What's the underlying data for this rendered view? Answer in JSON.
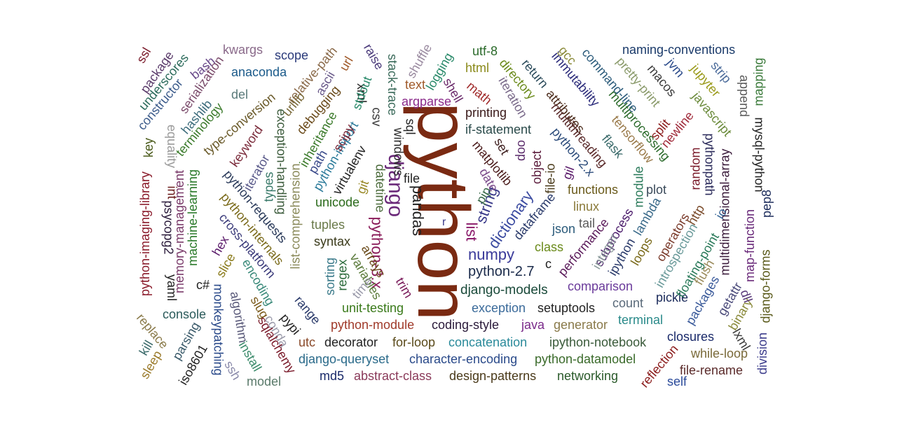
{
  "title": "Python tag word cloud",
  "words": [
    {
      "text": "python",
      "color": "#7a2a12"
    },
    {
      "text": "django",
      "color": "#6b2a7a"
    },
    {
      "text": "python-3.x",
      "color": "#8a1c5a"
    },
    {
      "text": "pandas",
      "color": "#222222"
    },
    {
      "text": "list",
      "color": "#8a1a6a"
    },
    {
      "text": "string",
      "color": "#3a3a8a"
    },
    {
      "text": "dictionary",
      "color": "#3a4aa0"
    },
    {
      "text": "numpy",
      "color": "#3a3a9a"
    },
    {
      "text": "python-2.7",
      "color": "#1a2a4a"
    },
    {
      "text": "django-models",
      "color": "#1a4a3a"
    },
    {
      "text": "exception",
      "color": "#3a6a9a"
    },
    {
      "text": "setuptools",
      "color": "#222222"
    },
    {
      "text": "unit-testing",
      "color": "#3a7a1a"
    },
    {
      "text": "python-module",
      "color": "#a03a2a"
    },
    {
      "text": "coding-style",
      "color": "#2a1a3a"
    },
    {
      "text": "java",
      "color": "#7a2a8a"
    },
    {
      "text": "generator",
      "color": "#8a7a4a"
    },
    {
      "text": "utc",
      "color": "#8a4a2a"
    },
    {
      "text": "decorator",
      "color": "#222222"
    },
    {
      "text": "for-loop",
      "color": "#5a4a1a"
    },
    {
      "text": "concatenation",
      "color": "#2a8a9a"
    },
    {
      "text": "ipython-notebook",
      "color": "#3a5a3a"
    },
    {
      "text": "django-queryset",
      "color": "#2a6a8a"
    },
    {
      "text": "character-encoding",
      "color": "#2a4a8a"
    },
    {
      "text": "python-datamodel",
      "color": "#3a6a2a"
    },
    {
      "text": "md5",
      "color": "#1a2a6a"
    },
    {
      "text": "abstract-class",
      "color": "#8a3a5a"
    },
    {
      "text": "design-patterns",
      "color": "#4a3a1a"
    },
    {
      "text": "networking",
      "color": "#2a5a2a"
    },
    {
      "text": "comparison",
      "color": "#6a3a9a"
    },
    {
      "text": "count",
      "color": "#5a6a7a"
    },
    {
      "text": "terminal",
      "color": "#2a8a8a"
    },
    {
      "text": "pickle",
      "color": "#1a2a5a"
    },
    {
      "text": "closures",
      "color": "#1a2a6a"
    },
    {
      "text": "while-loop",
      "color": "#7a6a3a"
    },
    {
      "text": "file-rename",
      "color": "#5a2a2a"
    },
    {
      "text": "self",
      "color": "#2a4a9a"
    },
    {
      "text": "argparse",
      "color": "#8a2a8a"
    },
    {
      "text": "printing",
      "color": "#3a1a1a"
    },
    {
      "text": "if-statement",
      "color": "#2a4a4a"
    },
    {
      "text": "text",
      "color": "#a05a2a"
    },
    {
      "text": "html",
      "color": "#8a8a1a"
    },
    {
      "text": "utf-8",
      "color": "#2a6a2a"
    },
    {
      "text": "logging",
      "color": "#2a8a6a"
    },
    {
      "text": "file",
      "color": "#222222"
    },
    {
      "text": "unicode",
      "color": "#2a6a1a"
    },
    {
      "text": "tuples",
      "color": "#6a7a4a"
    },
    {
      "text": "syntax",
      "color": "#3a3a1a"
    },
    {
      "text": "json",
      "color": "#2a5a7a"
    },
    {
      "text": "class",
      "color": "#6a8a1a"
    },
    {
      "text": "c",
      "color": "#222222"
    },
    {
      "text": "functions",
      "color": "#6a5a1a"
    },
    {
      "text": "linux",
      "color": "#8a7a3a"
    },
    {
      "text": "tail",
      "color": "#5a5a5a"
    },
    {
      "text": "plot",
      "color": "#3a4a5a"
    },
    {
      "text": "naming-conventions",
      "color": "#1a3a6a"
    },
    {
      "text": "anaconda",
      "color": "#1a5a8a"
    },
    {
      "text": "scope",
      "color": "#2a3a7a"
    },
    {
      "text": "kwargs",
      "color": "#8a6a8a"
    },
    {
      "text": "del",
      "color": "#5a7a7a"
    },
    {
      "text": "r",
      "color": "#3a3a8a"
    },
    {
      "text": "key",
      "color": "#4a5a1a"
    },
    {
      "text": "c#",
      "color": "#222222"
    },
    {
      "text": "ssl",
      "color": "#7a1a2a"
    },
    {
      "text": "package",
      "color": "#5a3a6a"
    },
    {
      "text": "underscores",
      "color": "#2a6a5a"
    },
    {
      "text": "constructor",
      "color": "#3a5a8a"
    },
    {
      "text": "bash",
      "color": "#6a4a8a"
    },
    {
      "text": "serialization",
      "color": "#7a4a6a"
    },
    {
      "text": "hashlib",
      "color": "#3a6a7a"
    },
    {
      "text": "terminology",
      "color": "#3a7a2a"
    },
    {
      "text": "equality",
      "color": "#9a9a9a"
    },
    {
      "text": "type-conversion",
      "color": "#6a5a2a"
    },
    {
      "text": "keyword",
      "color": "#7a2a3a"
    },
    {
      "text": "relative-path",
      "color": "#8a6a4a"
    },
    {
      "text": "urllib",
      "color": "#7a6a3a"
    },
    {
      "text": "ascii",
      "color": "#6a5a8a"
    },
    {
      "text": "url",
      "color": "#a05a2a"
    },
    {
      "text": "debugging",
      "color": "#6a4a1a"
    },
    {
      "text": "raise",
      "color": "#4a3a7a"
    },
    {
      "text": "xml",
      "color": "#222222"
    },
    {
      "text": "stdout",
      "color": "#2a8a6a"
    },
    {
      "text": "csv",
      "color": "#3a3a3a"
    },
    {
      "text": "stack-trace",
      "color": "#3a6a5a"
    },
    {
      "text": "shuffle",
      "color": "#9a8aa0"
    },
    {
      "text": "shell",
      "color": "#6a2a6a"
    },
    {
      "text": "math",
      "color": "#a02a2a"
    },
    {
      "text": "directory",
      "color": "#6a8a1a"
    },
    {
      "text": "iteration",
      "color": "#7a6a8a"
    },
    {
      "text": "return",
      "color": "#2a4a5a"
    },
    {
      "text": "attributes",
      "color": "#4a2a1a"
    },
    {
      "text": "multithreading",
      "color": "#5a2a2a"
    },
    {
      "text": "gcc",
      "color": "#8a8a3a"
    },
    {
      "text": "immutability",
      "color": "#2a2a7a"
    },
    {
      "text": "command-line",
      "color": "#2a5a7a"
    },
    {
      "text": "multiprocessing",
      "color": "#2a6a2a"
    },
    {
      "text": "pretty-print",
      "color": "#8a9a6a"
    },
    {
      "text": "macos",
      "color": "#3a3a3a"
    },
    {
      "text": "jvm",
      "color": "#2a4a8a"
    },
    {
      "text": "strip",
      "color": "#4a6a9a"
    },
    {
      "text": "jupyter",
      "color": "#9a9a1a"
    },
    {
      "text": "append",
      "color": "#5a5a5a"
    },
    {
      "text": "mapping",
      "color": "#3a7a3a"
    },
    {
      "text": "javascript",
      "color": "#6a8a3a"
    },
    {
      "text": "split",
      "color": "#8a1a1a"
    },
    {
      "text": "newline",
      "color": "#a02a3a"
    },
    {
      "text": "pythonpath",
      "color": "#2a2a5a"
    },
    {
      "text": "multidimensional-array",
      "color": "#3a1a3a"
    },
    {
      "text": "mysql-python",
      "color": "#222222"
    },
    {
      "text": "pep8",
      "color": "#1a2a5a"
    },
    {
      "text": "random",
      "color": "#7a1a2a"
    },
    {
      "text": "http",
      "color": "#7a4a2a"
    },
    {
      "text": "io",
      "color": "#3a6a9a"
    },
    {
      "text": "map-function",
      "color": "#6a2a7a"
    },
    {
      "text": "flask",
      "color": "#3a6a6a"
    },
    {
      "text": "tensorflow",
      "color": "#9a7a4a"
    },
    {
      "text": "python-2.x",
      "color": "#2a4a7a"
    },
    {
      "text": "file-io",
      "color": "#4a3a1a"
    },
    {
      "text": "gil",
      "color": "#5a1a6a"
    },
    {
      "text": "module",
      "color": "#2a7a5a"
    },
    {
      "text": "lambda",
      "color": "#3a6a8a"
    },
    {
      "text": "operators",
      "color": "#7a3a2a"
    },
    {
      "text": "introspection",
      "color": "#6a9a9a"
    },
    {
      "text": "floating-point",
      "color": "#2a7a5a"
    },
    {
      "text": "flush",
      "color": "#9a8a5a"
    },
    {
      "text": "packages",
      "color": "#3a5a9a"
    },
    {
      "text": "getattr",
      "color": "#4a4a7a"
    },
    {
      "text": "binary",
      "color": "#8a8a3a"
    },
    {
      "text": "lxml",
      "color": "#3a3a3a"
    },
    {
      "text": "dll",
      "color": "#5a3a7a"
    },
    {
      "text": "django-forms",
      "color": "#5a5a1a"
    },
    {
      "text": "division",
      "color": "#3a3a8a"
    },
    {
      "text": "reflection",
      "color": "#8a1a1a"
    },
    {
      "text": "subprocess",
      "color": "#4a1a6a"
    },
    {
      "text": "integer",
      "color": "#8a9a9a"
    },
    {
      "text": "ipython",
      "color": "#2a3a6a"
    },
    {
      "text": "performance",
      "color": "#5a1a5a"
    },
    {
      "text": "loops",
      "color": "#7a6a1a"
    },
    {
      "text": "dataframe",
      "color": "#2a3a6a"
    },
    {
      "text": "object",
      "color": "#5a1a3a"
    },
    {
      "text": "oop",
      "color": "#5a2a6a"
    },
    {
      "text": "set",
      "color": "#3a1a1a"
    },
    {
      "text": "matplotlib",
      "color": "#4a1a1a"
    },
    {
      "text": "date",
      "color": "#7a4a8a"
    },
    {
      "text": "pip",
      "color": "#3a6a4a"
    },
    {
      "text": "sql",
      "color": "#222222"
    },
    {
      "text": "windows",
      "color": "#2a2a2a"
    },
    {
      "text": "datetime",
      "color": "#4a6a3a"
    },
    {
      "text": "python-import",
      "color": "#2a7a9a"
    },
    {
      "text": "virtualenv",
      "color": "#222222"
    },
    {
      "text": "git",
      "color": "#9a8a2a"
    },
    {
      "text": "inheritance",
      "color": "#3a7a2a"
    },
    {
      "text": "scipy",
      "color": "#7a2a3a"
    },
    {
      "text": "path",
      "color": "#3a4a8a"
    },
    {
      "text": "exception-handling",
      "color": "#3a5a3a"
    },
    {
      "text": "list-comprehension",
      "color": "#8a8a5a"
    },
    {
      "text": "sorting",
      "color": "#3a7a8a"
    },
    {
      "text": "regex",
      "color": "#2a6a3a"
    },
    {
      "text": "arrays",
      "color": "#6a4a1a"
    },
    {
      "text": "variables",
      "color": "#5a7a3a"
    },
    {
      "text": "time",
      "color": "#9a9aaa"
    },
    {
      "text": "trim",
      "color": "#7a1a5a"
    },
    {
      "text": "range",
      "color": "#2a3a6a"
    },
    {
      "text": "pypi",
      "color": "#222222"
    },
    {
      "text": "encoding",
      "color": "#3a8a7a"
    },
    {
      "text": "slug",
      "color": "#7a5a1a"
    },
    {
      "text": "conda",
      "color": "#9a9aaa"
    },
    {
      "text": "sqlalchemy",
      "color": "#7a1a2a"
    },
    {
      "text": "install",
      "color": "#3a8a6a"
    },
    {
      "text": "ssh",
      "color": "#8a8aaa"
    },
    {
      "text": "algorithm",
      "color": "#5a5a7a"
    },
    {
      "text": "monkeypatching",
      "color": "#2a4a8a"
    },
    {
      "text": "model",
      "color": "#5a7a6a"
    },
    {
      "text": "iso8601",
      "color": "#222222"
    },
    {
      "text": "parsing",
      "color": "#3a5a6a"
    },
    {
      "text": "sleep",
      "color": "#9a7a2a"
    },
    {
      "text": "kill",
      "color": "#3a6a6a"
    },
    {
      "text": "replace",
      "color": "#8a7a4a"
    },
    {
      "text": "console",
      "color": "#2a5a5a"
    },
    {
      "text": "yaml",
      "color": "#222222"
    },
    {
      "text": "python-imaging-library",
      "color": "#8a1a2a"
    },
    {
      "text": "int",
      "color": "#6a1a1a"
    },
    {
      "text": "psycopg2",
      "color": "#2a1a3a"
    },
    {
      "text": "memory-management",
      "color": "#7a3a6a"
    },
    {
      "text": "machine-learning",
      "color": "#2a7a2a"
    },
    {
      "text": "hex",
      "color": "#5a1a6a"
    },
    {
      "text": "slice",
      "color": "#8a7a1a"
    },
    {
      "text": "python-requests",
      "color": "#2a3a5a"
    },
    {
      "text": "cross-platform",
      "color": "#3a3a7a"
    },
    {
      "text": "python-internals",
      "color": "#7a6a1a"
    },
    {
      "text": "types",
      "color": "#3a7a6a"
    },
    {
      "text": "iterator",
      "color": "#5a5a8a"
    }
  ]
}
